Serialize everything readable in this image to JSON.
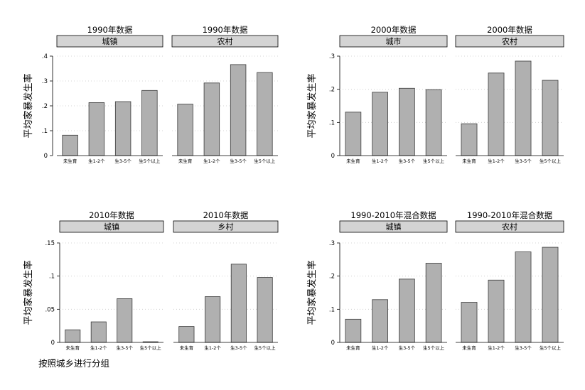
{
  "note": "按照城乡进行分组",
  "chart_data": [
    {
      "type": "bar",
      "ylabel": "平均家暴发生率",
      "ylim": [
        0,
        0.4
      ],
      "yticks": [
        0,
        0.1,
        0.2,
        0.3,
        0.4
      ],
      "ytick_labels": [
        "0",
        ".1",
        ".2",
        ".3",
        ".4"
      ],
      "grid": true,
      "categories": [
        "未生育",
        "生1-2个",
        "生3-5个",
        "生5个以上"
      ],
      "panels": [
        {
          "title": "1990年数据",
          "strip": "城镇",
          "values": [
            0.082,
            0.213,
            0.217,
            0.262
          ]
        },
        {
          "title": "1990年数据",
          "strip": "农村",
          "values": [
            0.207,
            0.292,
            0.366,
            0.334
          ]
        }
      ]
    },
    {
      "type": "bar",
      "ylabel": "平均家暴发生率",
      "ylim": [
        0,
        0.3
      ],
      "yticks": [
        0,
        0.1,
        0.2,
        0.3
      ],
      "ytick_labels": [
        "0",
        ".1",
        ".2",
        ".3"
      ],
      "grid": true,
      "categories": [
        "未生育",
        "生1-2个",
        "生3-5个",
        "生5个以上"
      ],
      "panels": [
        {
          "title": "2000年数据",
          "strip": "城市",
          "values": [
            0.131,
            0.191,
            0.203,
            0.199
          ]
        },
        {
          "title": "2000年数据",
          "strip": "农村",
          "values": [
            0.096,
            0.249,
            0.285,
            0.227
          ]
        }
      ]
    },
    {
      "type": "bar",
      "ylabel": "平均家暴发生率",
      "ylim": [
        0,
        0.15
      ],
      "yticks": [
        0,
        0.05,
        0.1,
        0.15
      ],
      "ytick_labels": [
        "0",
        ".05",
        ".1",
        ".15"
      ],
      "grid": true,
      "categories": [
        "未生育",
        "生1-2个",
        "生3-5个",
        "生5个以上"
      ],
      "panels": [
        {
          "title": "2010年数据",
          "strip": "城镇",
          "values": [
            0.019,
            0.031,
            0.066,
            0.001
          ]
        },
        {
          "title": "2010年数据",
          "strip": "乡村",
          "values": [
            0.024,
            0.069,
            0.118,
            0.098
          ]
        }
      ]
    },
    {
      "type": "bar",
      "ylabel": "平均家暴发生率",
      "ylim": [
        0,
        0.3
      ],
      "yticks": [
        0,
        0.1,
        0.2,
        0.3
      ],
      "ytick_labels": [
        "0",
        ".1",
        ".2",
        ".3"
      ],
      "grid": true,
      "categories": [
        "未生育",
        "生1-2个",
        "生3-5个",
        "生5个以上"
      ],
      "panels": [
        {
          "title": "1990-2010年混合数据",
          "strip": "城镇",
          "values": [
            0.07,
            0.129,
            0.191,
            0.239
          ]
        },
        {
          "title": "1990-2010年混合数据",
          "strip": "农村",
          "values": [
            0.121,
            0.188,
            0.273,
            0.287
          ]
        }
      ]
    }
  ]
}
